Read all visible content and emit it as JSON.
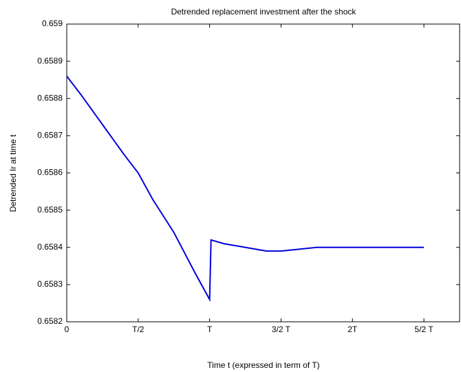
{
  "chart_data": {
    "type": "line",
    "title": "Detrended replacement investment after the shock",
    "xlabel": "Time t (expressed in term of T)",
    "ylabel": "Detrended Ir at time t",
    "x": [
      0,
      0.1,
      0.25,
      0.4,
      0.5,
      0.6,
      0.75,
      0.9,
      1.0,
      1.005,
      1.01,
      1.1,
      1.25,
      1.4,
      1.5,
      1.75,
      2.0,
      2.25,
      2.5
    ],
    "series": [
      {
        "name": "Ir",
        "color": "#0000dd",
        "values": [
          0.65886,
          0.65881,
          0.65873,
          0.65865,
          0.6586,
          0.65853,
          0.65844,
          0.65833,
          0.65826,
          0.65834,
          0.65842,
          0.65841,
          0.6584,
          0.65839,
          0.65839,
          0.6584,
          0.6584,
          0.6584,
          0.6584
        ]
      }
    ],
    "xlim": [
      0,
      2.75
    ],
    "ylim": [
      0.6582,
      0.659
    ],
    "xticks": [
      0,
      {
        "value": 0.5,
        "label": "T/2"
      },
      {
        "value": 1,
        "label": "T"
      },
      {
        "value": 1.5,
        "label": "3/2 T"
      },
      {
        "value": 2,
        "label": "2T"
      },
      {
        "value": 2.5,
        "label": "5/2 T"
      }
    ],
    "yticks": [
      0.6582,
      0.6583,
      0.6584,
      0.6585,
      0.6586,
      0.6587,
      0.6588,
      0.6589,
      0.659
    ]
  }
}
